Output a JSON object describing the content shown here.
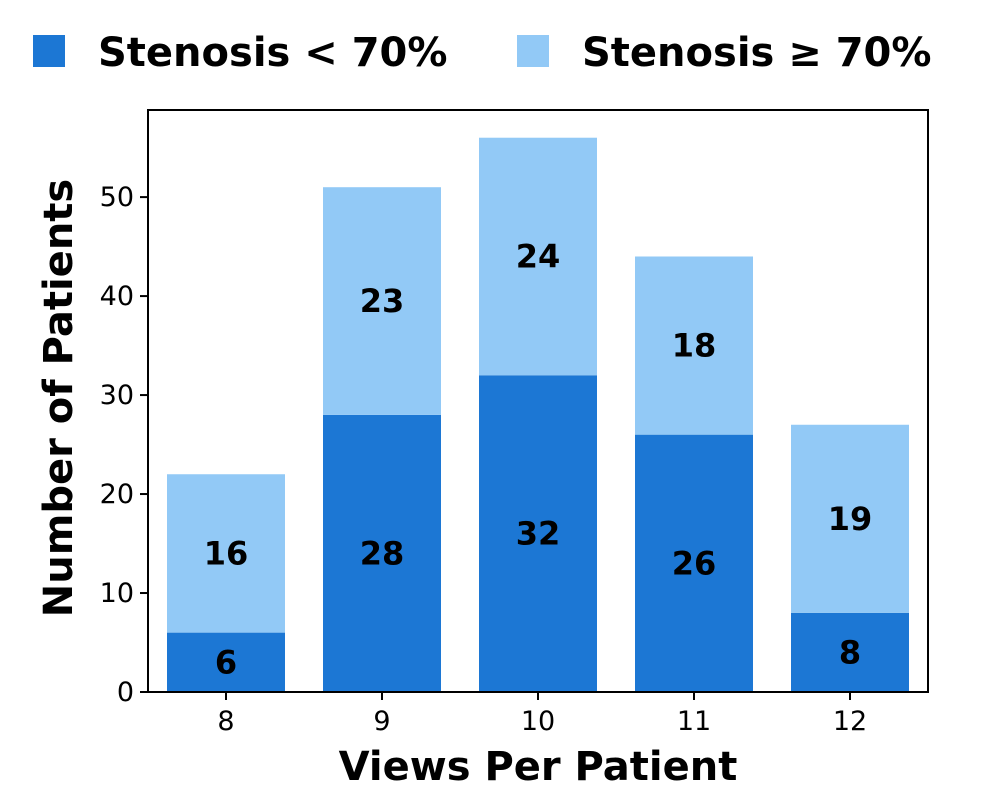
{
  "chart_data": {
    "type": "bar",
    "stacked": true,
    "categories": [
      "8",
      "9",
      "10",
      "11",
      "12"
    ],
    "series": [
      {
        "name": "Stenosis < 70%",
        "values": [
          6,
          28,
          32,
          26,
          8
        ],
        "color": "#1c77d4"
      },
      {
        "name": "Stenosis ≥ 70%",
        "values": [
          16,
          23,
          24,
          18,
          19
        ],
        "color": "#92c9f6"
      }
    ],
    "data_labels": true,
    "xlabel": "Views Per Patient",
    "ylabel": "Number of Patients",
    "ylim": [
      0,
      58.8
    ],
    "yticks": [
      0,
      10,
      20,
      30,
      40,
      50
    ],
    "legend": "top",
    "grid": false
  }
}
